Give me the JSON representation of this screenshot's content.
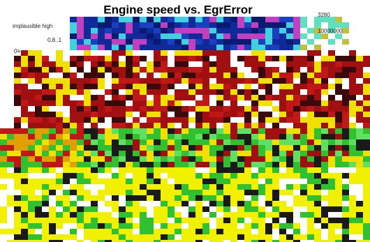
{
  "header": {
    "title": "Engine speed vs. EgrError"
  },
  "labels": {
    "row_top": "implausible high",
    "row_mid": "0.8..1",
    "row_low": "0≡",
    "scale_top": "3280",
    "scale_bottom": "10000000"
  }
}
